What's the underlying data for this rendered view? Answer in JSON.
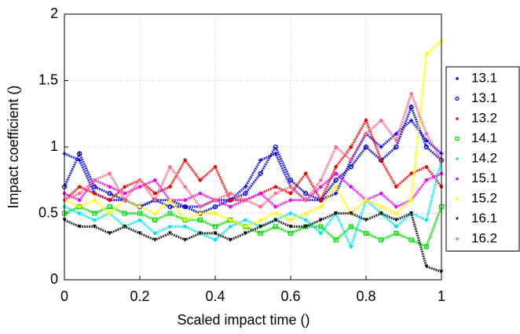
{
  "chart_data": {
    "type": "scatter",
    "x_label": "Scaled impact time ()",
    "y_label": "Impact coefficient ()",
    "x": [
      0,
      0.04,
      0.08,
      0.12,
      0.16,
      0.2,
      0.24,
      0.28,
      0.32,
      0.36,
      0.4,
      0.44,
      0.48,
      0.52,
      0.56,
      0.6,
      0.64,
      0.68,
      0.72,
      0.76,
      0.8,
      0.84,
      0.88,
      0.92,
      0.96,
      1
    ],
    "xlim": [
      0,
      1
    ],
    "xticks": [
      0,
      0.2,
      0.4,
      0.6,
      0.8,
      1
    ],
    "ylim": [
      0,
      2
    ],
    "yticks": [
      0,
      0.5,
      1,
      1.5,
      2
    ],
    "grid": true,
    "series": [
      {
        "name": "13.1",
        "color": "#0000ff",
        "marker": "plus",
        "values": [
          0.95,
          0.9,
          0.65,
          0.6,
          0.6,
          0.55,
          0.6,
          0.6,
          0.55,
          0.55,
          0.6,
          0.6,
          0.7,
          0.9,
          0.95,
          0.7,
          0.6,
          0.6,
          0.65,
          0.9,
          1.1,
          1.0,
          1.1,
          1.2,
          1.05,
          0.95
        ]
      },
      {
        "name": "13.1",
        "color": "#0000cc",
        "marker": "circle",
        "values": [
          0.7,
          0.95,
          0.7,
          0.65,
          0.6,
          0.55,
          0.6,
          0.55,
          0.55,
          0.5,
          0.55,
          0.6,
          0.65,
          0.8,
          1.0,
          0.75,
          0.65,
          0.6,
          0.75,
          0.85,
          1.0,
          0.9,
          1.0,
          1.3,
          1.0,
          0.9
        ]
      },
      {
        "name": "13.2",
        "color": "#ee0000",
        "marker": "dot",
        "values": [
          0.6,
          0.7,
          0.65,
          0.6,
          0.7,
          0.75,
          0.65,
          0.7,
          0.9,
          0.75,
          0.85,
          0.6,
          0.6,
          0.65,
          0.7,
          0.65,
          0.8,
          0.6,
          0.85,
          1.0,
          1.2,
          0.9,
          0.7,
          0.8,
          0.85,
          0.7
        ]
      },
      {
        "name": "14.1",
        "color": "#00dd00",
        "marker": "square",
        "values": [
          0.5,
          0.55,
          0.5,
          0.55,
          0.5,
          0.5,
          0.45,
          0.5,
          0.45,
          0.45,
          0.4,
          0.45,
          0.4,
          0.35,
          0.4,
          0.35,
          0.4,
          0.4,
          0.3,
          0.4,
          0.35,
          0.3,
          0.35,
          0.3,
          0.25,
          0.55
        ]
      },
      {
        "name": "14.2",
        "color": "#00e5ee",
        "marker": "dot",
        "values": [
          0.55,
          0.5,
          0.45,
          0.5,
          0.4,
          0.45,
          0.35,
          0.4,
          0.4,
          0.35,
          0.3,
          0.4,
          0.45,
          0.4,
          0.45,
          0.5,
          0.45,
          0.35,
          0.5,
          0.25,
          0.6,
          0.5,
          0.4,
          0.5,
          0.45,
          0.9
        ]
      },
      {
        "name": "15.1",
        "color": "#ee00ee",
        "marker": "dot",
        "values": [
          0.65,
          0.6,
          0.75,
          0.7,
          0.65,
          0.7,
          0.75,
          0.6,
          0.6,
          0.65,
          0.6,
          0.55,
          0.6,
          0.65,
          0.55,
          0.6,
          0.6,
          0.7,
          0.8,
          0.7,
          0.6,
          0.65,
          0.55,
          0.6,
          0.75,
          0.8
        ]
      },
      {
        "name": "15.2",
        "color": "#ffff00",
        "marker": "dot",
        "values": [
          0.6,
          0.55,
          0.6,
          0.5,
          0.6,
          0.55,
          0.5,
          0.6,
          0.45,
          0.5,
          0.5,
          0.45,
          0.4,
          0.45,
          0.5,
          0.45,
          0.5,
          0.55,
          0.7,
          0.5,
          0.6,
          0.55,
          0.5,
          0.6,
          1.7,
          1.8
        ]
      },
      {
        "name": "16.1",
        "color": "#111111",
        "marker": "triangle",
        "values": [
          0.45,
          0.4,
          0.4,
          0.35,
          0.4,
          0.35,
          0.3,
          0.35,
          0.3,
          0.35,
          0.35,
          0.3,
          0.35,
          0.4,
          0.45,
          0.4,
          0.4,
          0.45,
          0.5,
          0.5,
          0.45,
          0.5,
          0.45,
          0.5,
          0.1,
          0.06
        ]
      },
      {
        "name": "16.2",
        "color": "#ff6688",
        "marker": "dot",
        "values": [
          0.6,
          0.65,
          0.75,
          0.8,
          0.6,
          0.75,
          0.6,
          0.85,
          0.7,
          0.55,
          0.6,
          0.65,
          0.6,
          0.55,
          0.65,
          0.7,
          0.6,
          0.75,
          1.0,
          0.9,
          1.1,
          1.2,
          1.05,
          1.4,
          1.1,
          0.9
        ]
      }
    ]
  }
}
